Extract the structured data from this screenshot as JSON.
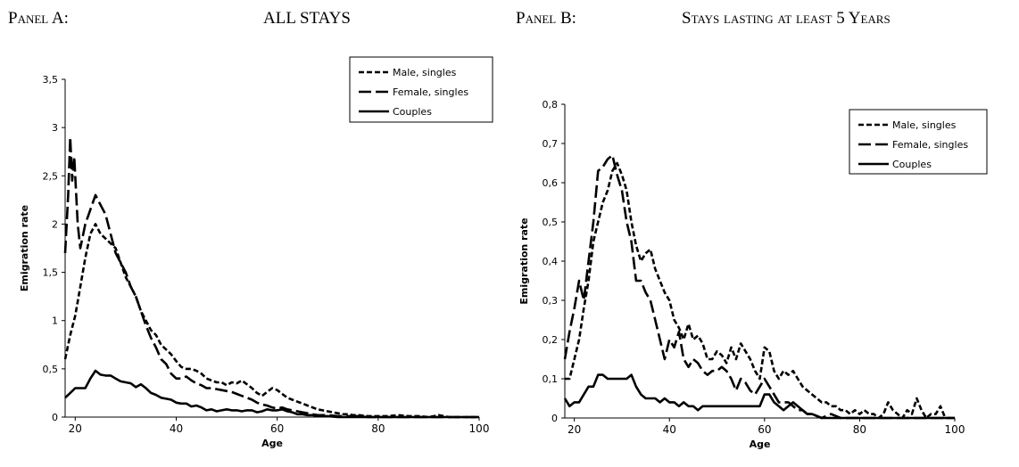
{
  "panels": {
    "a": {
      "prefix": "Panel A:",
      "title": "ALL STAYS"
    },
    "b": {
      "prefix": "Panel B:",
      "title": "Stays lasting at least 5 Years"
    }
  },
  "chart_data": [
    {
      "type": "line",
      "title": "",
      "xlabel": "Age",
      "ylabel": "Emigration rate",
      "xlim": [
        18,
        100
      ],
      "ylim": [
        0,
        3.5
      ],
      "xticks": [
        "20",
        "40",
        "60",
        "80",
        "100"
      ],
      "yticks": [
        "0",
        "0,5",
        "1",
        "1,5",
        "2",
        "2,5",
        "3",
        "3,5"
      ],
      "grid": false,
      "legend_position": "top-right",
      "series": [
        {
          "name": "Male, singles",
          "style": "short-dash",
          "x": [
            18,
            19,
            20,
            21,
            22,
            23,
            24,
            25,
            26,
            27,
            28,
            29,
            30,
            31,
            32,
            33,
            34,
            35,
            36,
            37,
            38,
            39,
            40,
            41,
            42,
            43,
            44,
            45,
            46,
            47,
            48,
            49,
            50,
            51,
            52,
            53,
            54,
            55,
            56,
            57,
            58,
            59,
            60,
            61,
            62,
            63,
            64,
            65,
            66,
            67,
            68,
            69,
            70,
            71,
            72,
            73,
            74,
            75,
            76,
            78,
            80,
            82,
            84,
            86,
            88,
            90,
            92,
            94,
            96,
            98,
            100
          ],
          "y": [
            0.6,
            0.85,
            1.05,
            1.35,
            1.65,
            1.9,
            2.0,
            1.9,
            1.85,
            1.8,
            1.75,
            1.6,
            1.45,
            1.35,
            1.25,
            1.1,
            1.0,
            0.9,
            0.85,
            0.75,
            0.7,
            0.65,
            0.58,
            0.52,
            0.5,
            0.5,
            0.48,
            0.45,
            0.4,
            0.38,
            0.36,
            0.36,
            0.33,
            0.36,
            0.35,
            0.38,
            0.34,
            0.3,
            0.25,
            0.22,
            0.26,
            0.3,
            0.28,
            0.24,
            0.2,
            0.18,
            0.16,
            0.14,
            0.12,
            0.1,
            0.08,
            0.07,
            0.06,
            0.05,
            0.04,
            0.03,
            0.03,
            0.02,
            0.02,
            0.01,
            0.01,
            0.01,
            0.02,
            0.01,
            0.01,
            0.0,
            0.02,
            0.0,
            0.0,
            0.0,
            0.0
          ]
        },
        {
          "name": "Female, singles",
          "style": "long-dash",
          "x": [
            18,
            18.6,
            19,
            19.4,
            19.8,
            20.5,
            21,
            22,
            23,
            24,
            25,
            26,
            27,
            28,
            29,
            30,
            31,
            32,
            33,
            34,
            35,
            36,
            37,
            38,
            39,
            40,
            41,
            42,
            43,
            44,
            45,
            46,
            47,
            48,
            49,
            50,
            51,
            52,
            53,
            54,
            55,
            56,
            57,
            58,
            59,
            60,
            61,
            62,
            63,
            64,
            65,
            66,
            67,
            68,
            69,
            70,
            72,
            74,
            76,
            78,
            80,
            85,
            90,
            95,
            100
          ],
          "y": [
            1.7,
            2.3,
            2.9,
            2.45,
            2.7,
            2.0,
            1.75,
            2.0,
            2.15,
            2.3,
            2.2,
            2.1,
            1.9,
            1.7,
            1.6,
            1.5,
            1.35,
            1.25,
            1.1,
            0.95,
            0.82,
            0.72,
            0.6,
            0.55,
            0.45,
            0.4,
            0.4,
            0.42,
            0.38,
            0.35,
            0.33,
            0.3,
            0.3,
            0.29,
            0.28,
            0.27,
            0.26,
            0.24,
            0.22,
            0.2,
            0.18,
            0.15,
            0.13,
            0.12,
            0.1,
            0.09,
            0.1,
            0.08,
            0.07,
            0.06,
            0.05,
            0.04,
            0.03,
            0.02,
            0.02,
            0.02,
            0.01,
            0.01,
            0.01,
            0.0,
            0.0,
            0.0,
            0.0,
            0.0,
            0.0
          ]
        },
        {
          "name": "Couples",
          "style": "solid",
          "x": [
            18,
            19,
            20,
            21,
            22,
            23,
            24,
            25,
            26,
            27,
            28,
            29,
            30,
            31,
            32,
            33,
            34,
            35,
            36,
            37,
            38,
            39,
            40,
            41,
            42,
            43,
            44,
            45,
            46,
            47,
            48,
            49,
            50,
            51,
            52,
            53,
            54,
            55,
            56,
            57,
            58,
            59,
            60,
            61,
            62,
            63,
            64,
            65,
            66,
            67,
            68,
            69,
            70,
            72,
            74,
            76,
            78,
            80,
            85,
            90,
            95,
            100
          ],
          "y": [
            0.2,
            0.25,
            0.3,
            0.3,
            0.3,
            0.4,
            0.48,
            0.44,
            0.43,
            0.43,
            0.4,
            0.37,
            0.36,
            0.35,
            0.31,
            0.34,
            0.3,
            0.25,
            0.23,
            0.2,
            0.19,
            0.18,
            0.15,
            0.14,
            0.14,
            0.11,
            0.12,
            0.1,
            0.07,
            0.08,
            0.06,
            0.07,
            0.08,
            0.07,
            0.07,
            0.06,
            0.07,
            0.07,
            0.05,
            0.06,
            0.08,
            0.07,
            0.07,
            0.08,
            0.06,
            0.05,
            0.03,
            0.03,
            0.02,
            0.02,
            0.01,
            0.01,
            0.01,
            0.0,
            0.0,
            0.0,
            0.0,
            0.0,
            0.0,
            0.0,
            0.0,
            0.0
          ]
        }
      ]
    },
    {
      "type": "line",
      "title": "",
      "xlabel": "Age",
      "ylabel": "Emigration rate",
      "xlim": [
        18,
        100
      ],
      "ylim": [
        0,
        0.8
      ],
      "xticks": [
        "20",
        "40",
        "60",
        "80",
        "100"
      ],
      "yticks": [
        "0",
        "0,1",
        "0,2",
        "0,3",
        "0,4",
        "0,5",
        "0,6",
        "0,7",
        "0,8"
      ],
      "grid": false,
      "legend_position": "top-right",
      "series": [
        {
          "name": "Male, singles",
          "style": "short-dash",
          "x": [
            18,
            19,
            20,
            21,
            22,
            23,
            24,
            25,
            26,
            27,
            28,
            29,
            30,
            31,
            32,
            33,
            34,
            35,
            36,
            37,
            38,
            39,
            40,
            41,
            42,
            43,
            44,
            45,
            46,
            47,
            48,
            49,
            50,
            51,
            52,
            53,
            54,
            55,
            56,
            57,
            58,
            59,
            60,
            61,
            62,
            63,
            64,
            65,
            66,
            67,
            68,
            69,
            70,
            71,
            72,
            73,
            74,
            75,
            76,
            77,
            78,
            79,
            80,
            81,
            82,
            83,
            84,
            85,
            86,
            87,
            88,
            89,
            90,
            91,
            92,
            93,
            94,
            95,
            96,
            97,
            98,
            99,
            100
          ],
          "y": [
            0.1,
            0.1,
            0.15,
            0.2,
            0.28,
            0.35,
            0.45,
            0.5,
            0.55,
            0.58,
            0.63,
            0.65,
            0.62,
            0.58,
            0.5,
            0.44,
            0.4,
            0.42,
            0.43,
            0.38,
            0.35,
            0.32,
            0.3,
            0.25,
            0.23,
            0.2,
            0.24,
            0.2,
            0.21,
            0.19,
            0.15,
            0.15,
            0.17,
            0.16,
            0.14,
            0.18,
            0.15,
            0.19,
            0.17,
            0.15,
            0.12,
            0.1,
            0.18,
            0.17,
            0.12,
            0.1,
            0.12,
            0.11,
            0.12,
            0.1,
            0.08,
            0.07,
            0.06,
            0.05,
            0.04,
            0.04,
            0.03,
            0.03,
            0.02,
            0.02,
            0.01,
            0.02,
            0.01,
            0.02,
            0.01,
            0.01,
            0.0,
            0.01,
            0.04,
            0.02,
            0.01,
            0.0,
            0.02,
            0.01,
            0.05,
            0.02,
            0.0,
            0.01,
            0.01,
            0.03,
            0.0,
            0.0,
            0.0
          ]
        },
        {
          "name": "Female, singles",
          "style": "long-dash",
          "x": [
            18,
            19,
            20,
            21,
            22,
            23,
            24,
            25,
            26,
            27,
            28,
            29,
            30,
            31,
            32,
            33,
            34,
            35,
            36,
            37,
            38,
            39,
            40,
            41,
            42,
            43,
            44,
            45,
            46,
            47,
            48,
            49,
            50,
            51,
            52,
            53,
            54,
            55,
            56,
            57,
            58,
            59,
            60,
            61,
            62,
            63,
            64,
            65,
            66,
            67,
            68,
            69,
            70,
            72,
            74,
            76,
            78,
            80,
            85,
            90,
            95,
            100
          ],
          "y": [
            0.15,
            0.22,
            0.28,
            0.35,
            0.3,
            0.4,
            0.5,
            0.63,
            0.64,
            0.66,
            0.67,
            0.62,
            0.58,
            0.5,
            0.45,
            0.35,
            0.35,
            0.32,
            0.3,
            0.25,
            0.2,
            0.15,
            0.2,
            0.18,
            0.22,
            0.15,
            0.13,
            0.15,
            0.14,
            0.12,
            0.11,
            0.12,
            0.12,
            0.13,
            0.12,
            0.1,
            0.07,
            0.1,
            0.09,
            0.07,
            0.06,
            0.08,
            0.1,
            0.08,
            0.06,
            0.04,
            0.04,
            0.04,
            0.03,
            0.02,
            0.02,
            0.01,
            0.01,
            0.0,
            0.01,
            0.0,
            0.0,
            0.0,
            0.0,
            0.0,
            0.0,
            0.0
          ]
        },
        {
          "name": "Couples",
          "style": "solid",
          "x": [
            18,
            19,
            20,
            21,
            22,
            23,
            24,
            25,
            26,
            27,
            28,
            29,
            30,
            31,
            32,
            33,
            34,
            35,
            36,
            37,
            38,
            39,
            40,
            41,
            42,
            43,
            44,
            45,
            46,
            47,
            48,
            49,
            50,
            51,
            52,
            53,
            54,
            55,
            56,
            57,
            58,
            59,
            60,
            61,
            62,
            63,
            64,
            65,
            66,
            67,
            68,
            69,
            70,
            72,
            74,
            76,
            78,
            80,
            85,
            90,
            95,
            100
          ],
          "y": [
            0.05,
            0.03,
            0.04,
            0.04,
            0.06,
            0.08,
            0.08,
            0.11,
            0.11,
            0.1,
            0.1,
            0.1,
            0.1,
            0.1,
            0.11,
            0.08,
            0.06,
            0.05,
            0.05,
            0.05,
            0.04,
            0.05,
            0.04,
            0.04,
            0.03,
            0.04,
            0.03,
            0.03,
            0.02,
            0.03,
            0.03,
            0.03,
            0.03,
            0.03,
            0.03,
            0.03,
            0.03,
            0.03,
            0.03,
            0.03,
            0.03,
            0.03,
            0.06,
            0.06,
            0.04,
            0.03,
            0.02,
            0.03,
            0.04,
            0.03,
            0.02,
            0.01,
            0.01,
            0.0,
            0.0,
            0.0,
            0.0,
            0.0,
            0.0,
            0.0,
            0.0,
            0.0
          ]
        }
      ]
    }
  ]
}
